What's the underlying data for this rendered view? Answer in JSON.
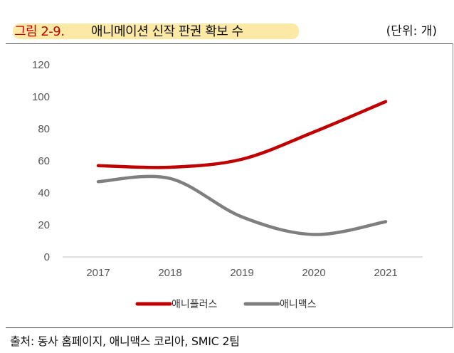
{
  "header": {
    "figure_label": "그림 2-9.",
    "figure_title": "애니메이션 신작 판권 확보 수",
    "unit": "(단위: 개)"
  },
  "footer": {
    "source": "출처: 동사 홈페이지, 애니맥스 코리아, SMIC 2팀"
  },
  "chart_data": {
    "type": "line",
    "x": [
      "2017",
      "2018",
      "2019",
      "2020",
      "2021"
    ],
    "ylim": [
      0,
      120
    ],
    "yticks": [
      0,
      20,
      40,
      60,
      80,
      100,
      120
    ],
    "grid": false,
    "legend_position": "bottom",
    "series": [
      {
        "name": "애니플러스",
        "color": "#c00000",
        "values": [
          57,
          56,
          61,
          78,
          97
        ]
      },
      {
        "name": "애니맥스",
        "color": "#7f7f7f",
        "values": [
          47,
          49,
          25,
          14,
          22
        ]
      }
    ]
  }
}
